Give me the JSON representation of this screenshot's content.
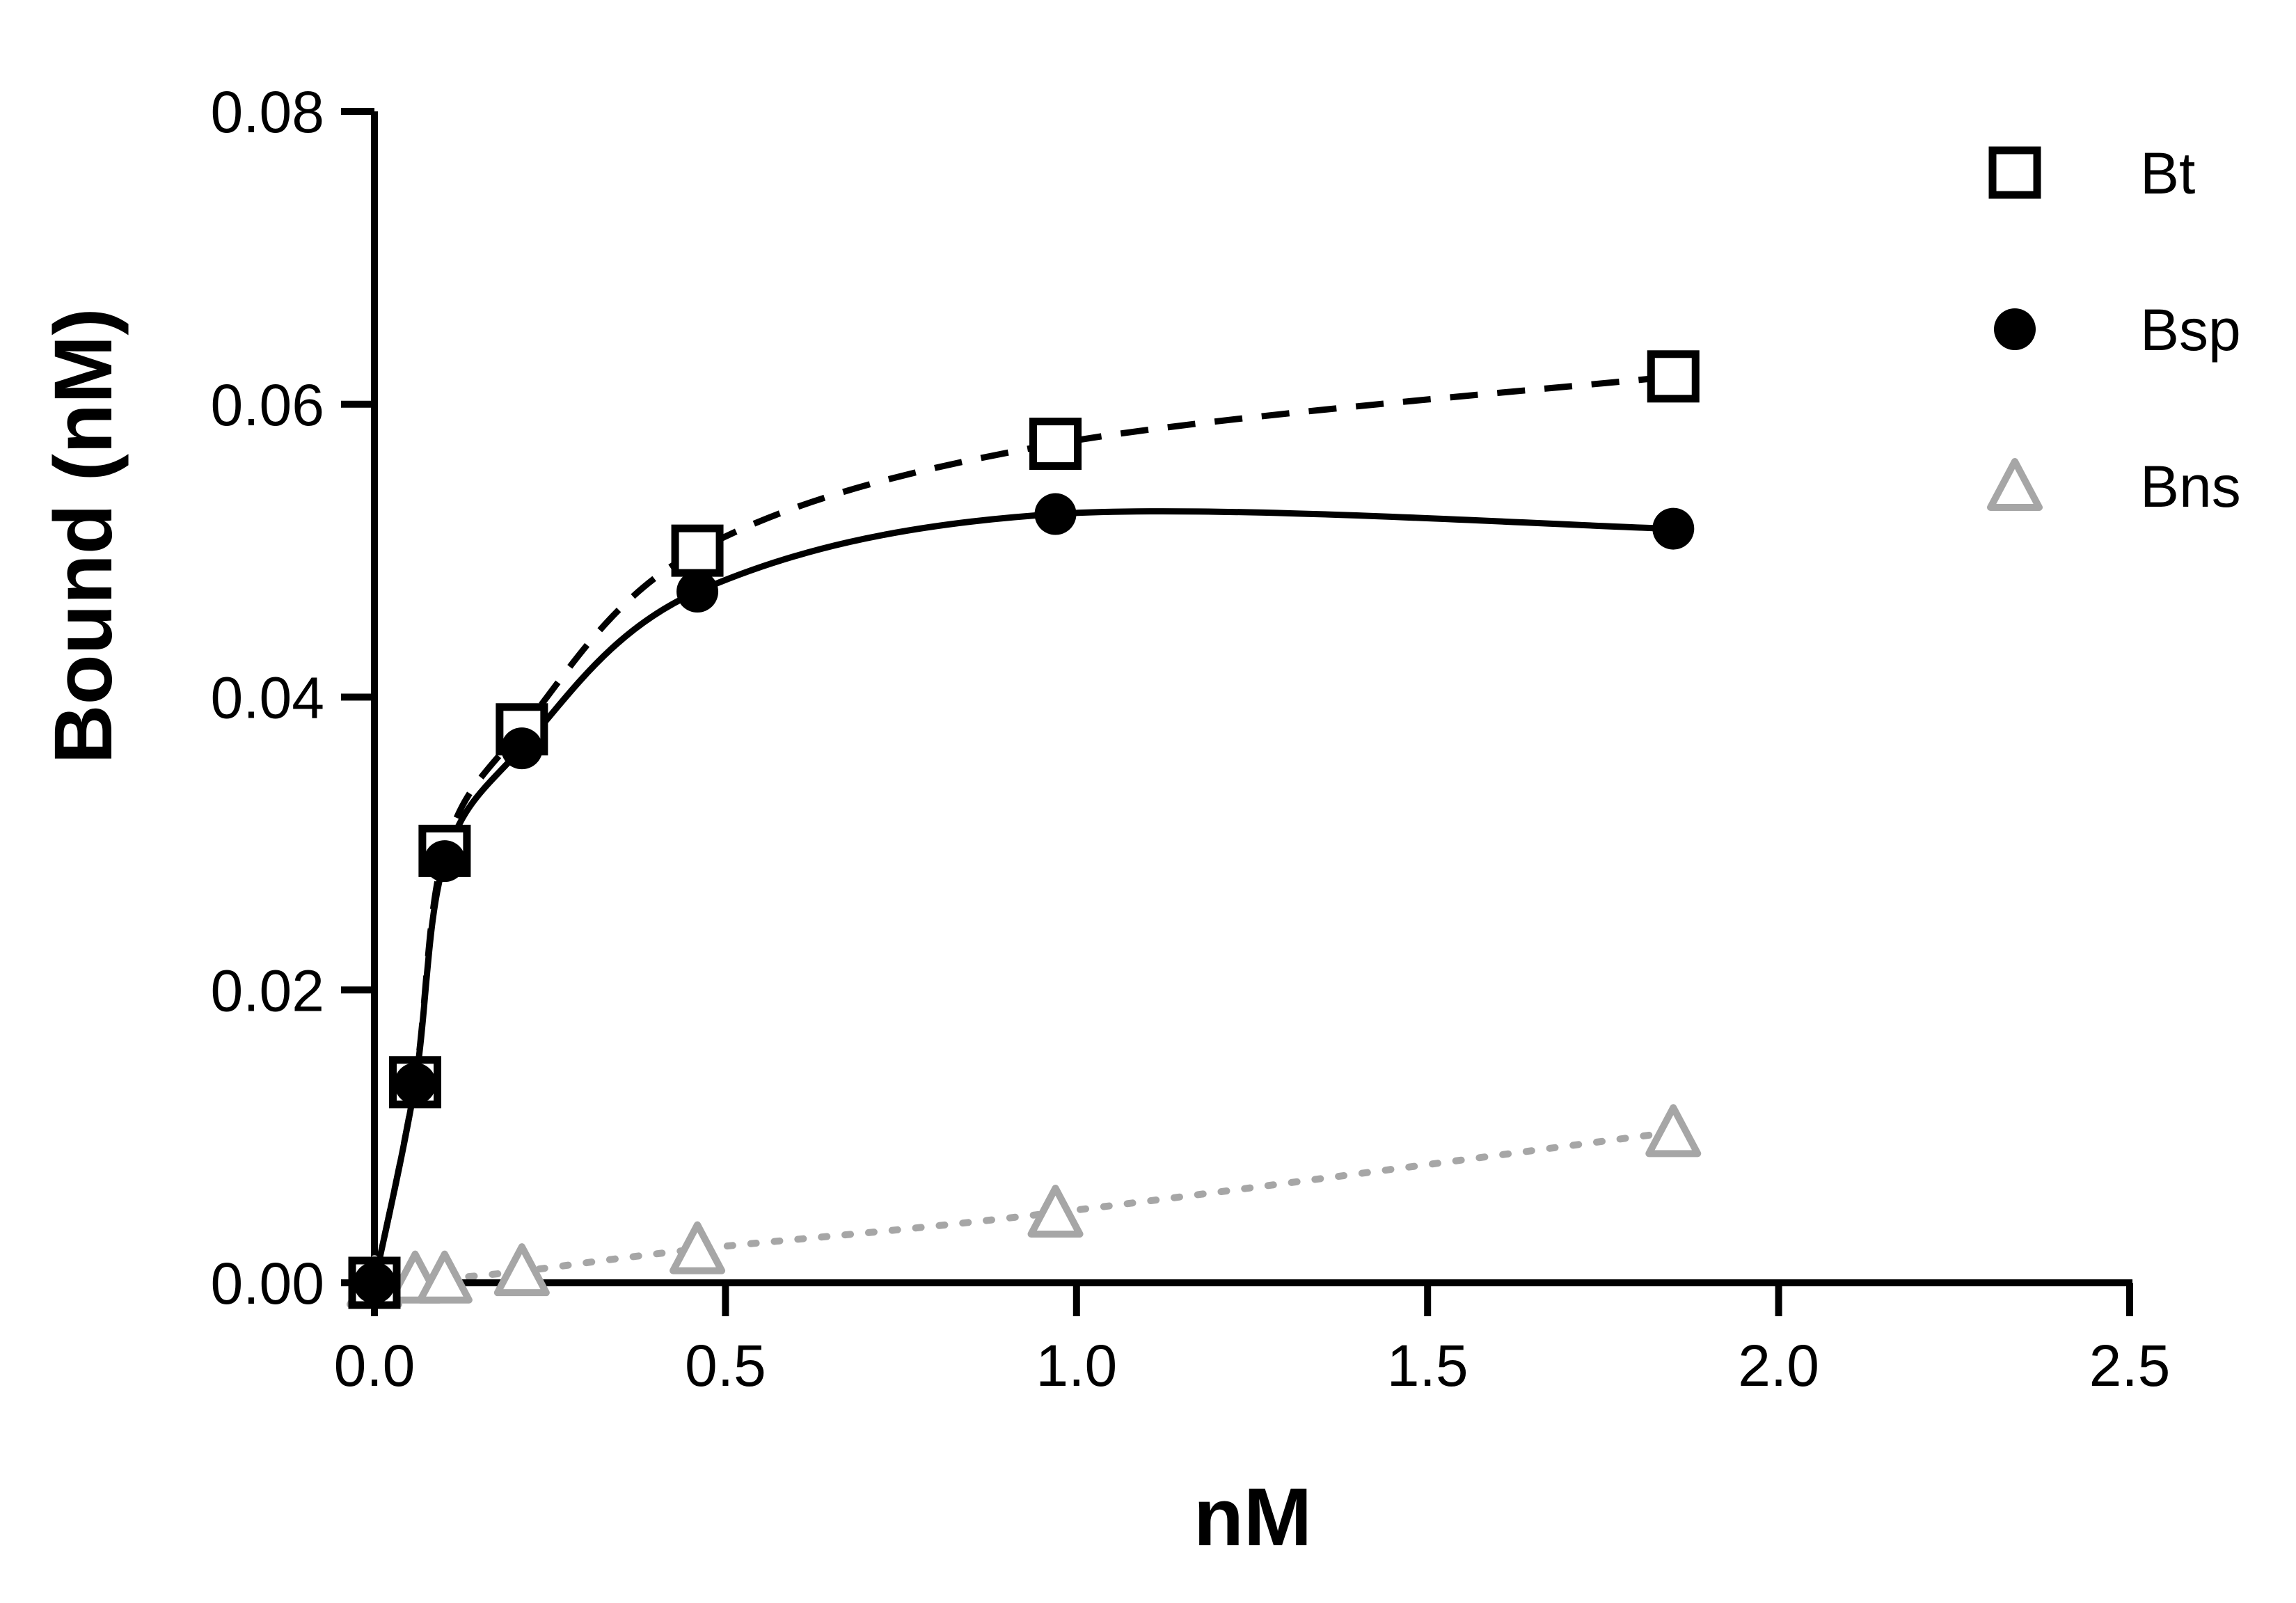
{
  "chart_data": {
    "type": "scatter",
    "xlabel": "nM",
    "ylabel": "Bound (nM)",
    "xlim": [
      0,
      2.5
    ],
    "ylim": [
      0,
      0.08
    ],
    "x_ticks": [
      {
        "value": 0.0,
        "label": "0.0"
      },
      {
        "value": 0.5,
        "label": "0.5"
      },
      {
        "value": 1.0,
        "label": "1.0"
      },
      {
        "value": 1.5,
        "label": "1.5"
      },
      {
        "value": 2.0,
        "label": "2.0"
      },
      {
        "value": 2.5,
        "label": "2.5"
      }
    ],
    "y_ticks": [
      {
        "value": 0.0,
        "label": "0.00"
      },
      {
        "value": 0.02,
        "label": "0.02"
      },
      {
        "value": 0.04,
        "label": "0.04"
      },
      {
        "value": 0.06,
        "label": "0.06"
      },
      {
        "value": 0.08,
        "label": "0.08"
      }
    ],
    "grid": false,
    "legend": {
      "position": "top-right"
    },
    "series": [
      {
        "name": "Bt",
        "marker": "open-square",
        "color": "#000000",
        "line": "dashed",
        "x": [
          0.0,
          0.058,
          0.1,
          0.21,
          0.46,
          0.97,
          1.85
        ],
        "y": [
          0.0,
          0.0137,
          0.0295,
          0.0378,
          0.05,
          0.0573,
          0.0619
        ]
      },
      {
        "name": "Bsp",
        "marker": "filled-circle",
        "color": "#000000",
        "line": "solid",
        "x": [
          0.0,
          0.058,
          0.1,
          0.21,
          0.46,
          0.97,
          1.85
        ],
        "y": [
          0.0,
          0.0136,
          0.0288,
          0.0365,
          0.0472,
          0.0525,
          0.0515
        ]
      },
      {
        "name": "Bns",
        "marker": "open-triangle",
        "color": "#a6a6a6",
        "line": "dotted",
        "x": [
          0.0,
          0.058,
          0.1,
          0.21,
          0.46,
          0.97,
          1.85
        ],
        "y": [
          0.0,
          0.0003,
          0.0003,
          0.0008,
          0.0023,
          0.0048,
          0.0103
        ]
      }
    ]
  }
}
